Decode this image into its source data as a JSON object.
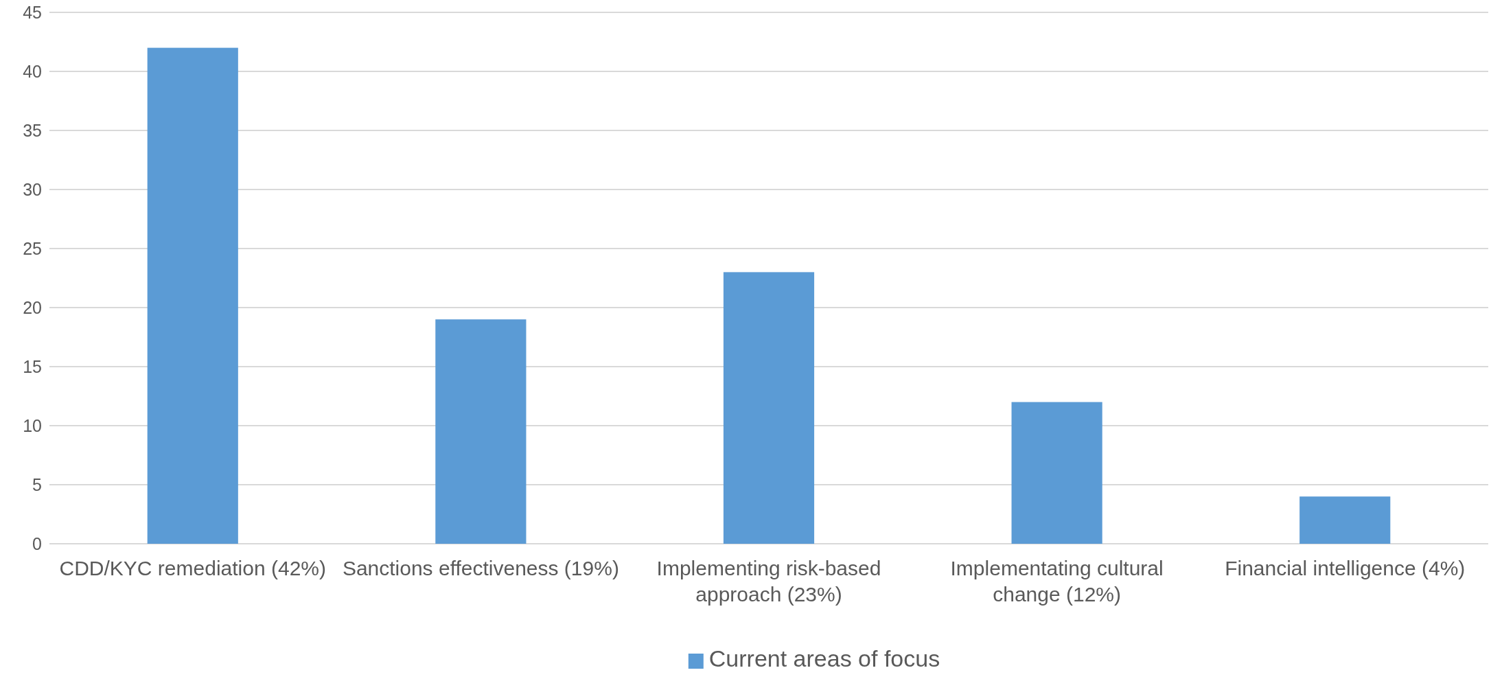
{
  "chart_data": {
    "type": "bar",
    "categories": [
      "CDD/KYC remediation (42%)",
      "Sanctions effectiveness (19%)",
      "Implementing risk-based approach (23%)",
      "Implementating cultural change (12%)",
      "Financial intelligence (4%)"
    ],
    "series": [
      {
        "name": "Current areas of focus",
        "color": "#5b9bd5",
        "values": [
          42,
          19,
          23,
          12,
          4
        ]
      }
    ],
    "ylim": [
      0,
      45
    ],
    "yticks": [
      0,
      5,
      10,
      15,
      20,
      25,
      30,
      35,
      40,
      45
    ],
    "grid": "y",
    "legend": "bottom"
  }
}
